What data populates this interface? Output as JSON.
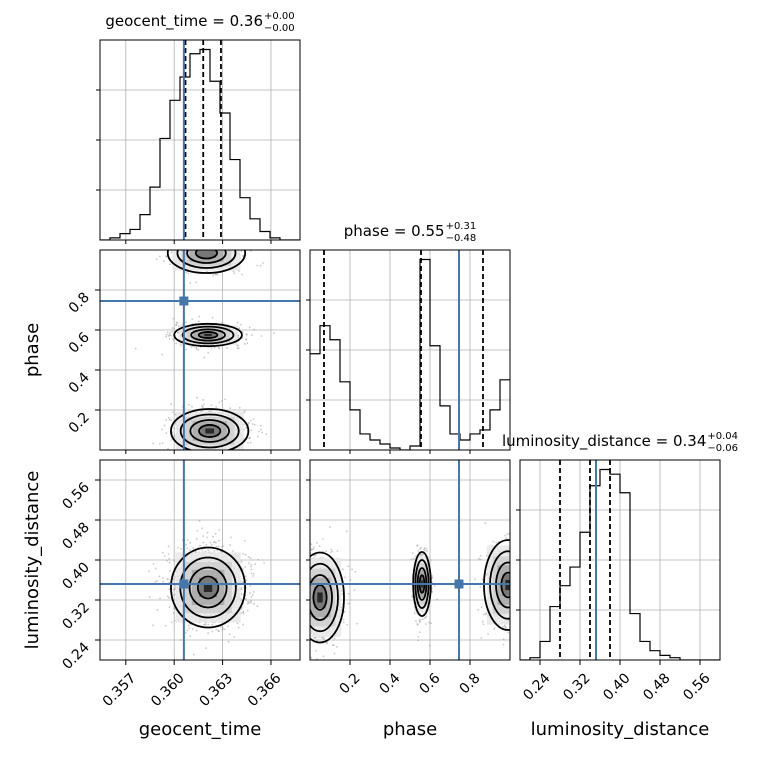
{
  "chart_data": {
    "type": "corner",
    "parameters": [
      "geocent_time",
      "phase",
      "luminosity_distance"
    ],
    "ranges": {
      "geocent_time": [
        0.3554,
        0.3678
      ],
      "phase": [
        0.0,
        1.0
      ],
      "luminosity_distance": [
        0.2,
        0.6
      ]
    },
    "truths": {
      "phase": 0.745,
      "luminosity_distance": 0.352,
      "geocent_time": 0.3606
    },
    "titles": [
      {
        "param": "geocent_time",
        "text": "geocent_time = 0.36",
        "median": 0.36,
        "upper": "+0.00",
        "lower": "−0.00"
      },
      {
        "param": "phase",
        "text": "phase = 0.55",
        "median": 0.55,
        "upper": "+0.31",
        "lower": "−0.48"
      },
      {
        "param": "luminosity_distance",
        "text": "luminosity_distance = 0.34",
        "median": 0.34,
        "upper": "+0.04",
        "lower": "−0.06"
      }
    ],
    "ticks": {
      "geocent_time": [
        "0.357",
        "0.360",
        "0.363",
        "0.366"
      ],
      "geocent_time_values": [
        0.357,
        0.36,
        0.363,
        0.366
      ],
      "phase": [
        "0.2",
        "0.4",
        "0.6",
        "0.8"
      ],
      "phase_values": [
        0.2,
        0.4,
        0.6,
        0.8
      ],
      "luminosity_distance": [
        "0.24",
        "0.32",
        "0.40",
        "0.48",
        "0.56"
      ],
      "luminosity_distance_values": [
        0.24,
        0.32,
        0.4,
        0.48,
        0.56
      ]
    },
    "quantiles": {
      "geocent_time": [
        0.3607,
        0.3618,
        0.3629
      ],
      "phase": [
        0.07,
        0.555,
        0.865
      ],
      "luminosity_distance": [
        0.28,
        0.34,
        0.38
      ]
    },
    "histograms": {
      "geocent_time": {
        "edges_start": 0.3554,
        "bin_width": 0.00062,
        "counts": [
          0,
          1,
          3,
          5,
          12,
          25,
          48,
          66,
          77,
          88,
          90,
          75,
          60,
          38,
          20,
          10,
          4,
          1,
          0,
          0
        ]
      },
      "phase": {
        "edges_start": 0.0,
        "bin_width": 0.05,
        "counts": [
          48,
          62,
          55,
          34,
          20,
          8,
          5,
          3,
          1,
          0,
          2,
          95,
          52,
          22,
          8,
          5,
          8,
          10,
          20,
          35
        ]
      },
      "luminosity_distance": {
        "edges_start": 0.2,
        "bin_width": 0.02,
        "counts": [
          0,
          1,
          8,
          23,
          32,
          40,
          55,
          75,
          82,
          80,
          72,
          20,
          8,
          4,
          2,
          1,
          0,
          0,
          0,
          0
        ]
      }
    },
    "grid": true
  },
  "axis_labels": {
    "x": [
      "geocent_time",
      "phase",
      "luminosity_distance"
    ],
    "y": [
      "phase",
      "luminosity_distance"
    ]
  },
  "colors": {
    "truth": "#4477aa",
    "contour": "#000000",
    "points": "#9a9a9a",
    "grid": "#b0b0b0"
  }
}
